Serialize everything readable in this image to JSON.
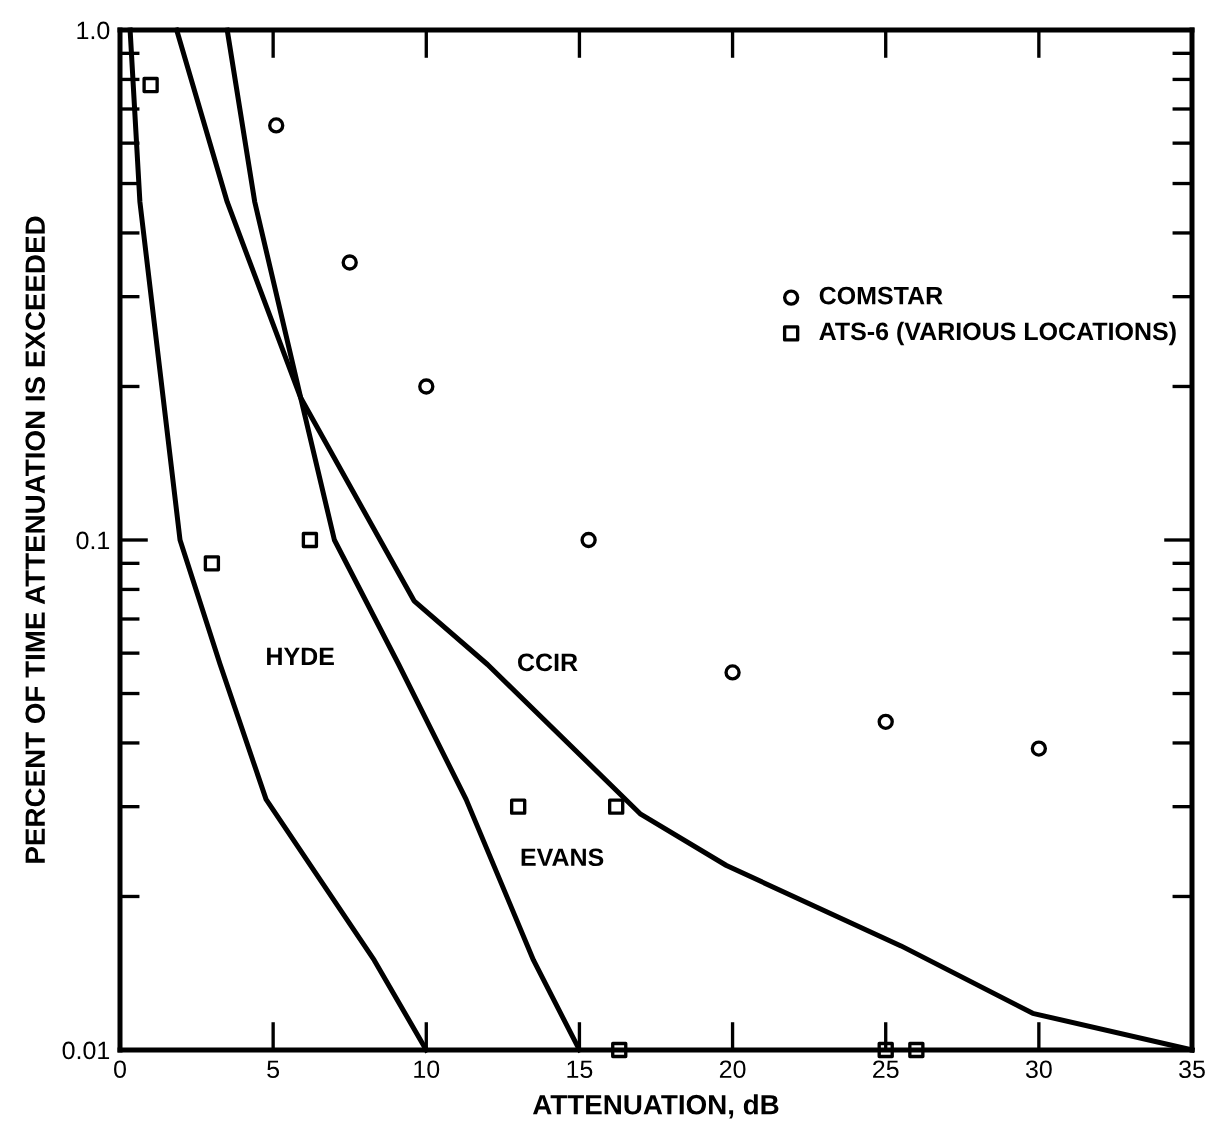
{
  "chart_data": {
    "type": "line",
    "xlabel": "ATTENUATION, dB",
    "ylabel": "PERCENT OF TIME ATTENUATION IS EXCEEDED",
    "log": "y",
    "xlim": [
      0,
      35
    ],
    "ylim": [
      0.01,
      1.0
    ],
    "xticks": [
      0,
      5,
      10,
      15,
      20,
      25,
      30,
      35
    ],
    "yticks": [
      {
        "value": 0.01,
        "label": "0.01"
      },
      {
        "value": 0.1,
        "label": "0.1"
      },
      {
        "value": 1.0,
        "label": "1.0"
      }
    ],
    "grid": false,
    "legend": "right",
    "series": [
      {
        "name": "HYDE",
        "color": "#000000",
        "marker": "none",
        "x": [
          0.33,
          0.65,
          1.96,
          3.27,
          4.77,
          8.3,
          10
        ],
        "values": [
          1.0,
          0.46,
          0.1,
          0.057,
          0.031,
          0.015,
          0.01
        ]
      },
      {
        "name": "EVANS",
        "color": "#000000",
        "marker": "none",
        "x": [
          3.5,
          4.4,
          5.9,
          7.0,
          9.1,
          11.3,
          13.5,
          15
        ],
        "values": [
          1.0,
          0.46,
          0.19,
          0.1,
          0.057,
          0.031,
          0.015,
          0.01
        ]
      },
      {
        "name": "CCIR",
        "color": "#000000",
        "marker": "none",
        "x": [
          1.85,
          3.5,
          5.9,
          9.6,
          12.0,
          17.0,
          19.8,
          25.5,
          29.8,
          35
        ],
        "values": [
          1.0,
          0.46,
          0.19,
          0.076,
          0.057,
          0.029,
          0.023,
          0.016,
          0.0118,
          0.01
        ]
      },
      {
        "type": "scatter",
        "name": "COMSTAR",
        "color": "#000000",
        "marker": "circle",
        "x": [
          5.1,
          7.5,
          10,
          15.3,
          20,
          25,
          30
        ],
        "values": [
          0.65,
          0.35,
          0.2,
          0.1,
          0.055,
          0.044,
          0.039
        ]
      },
      {
        "type": "scatter",
        "name": "ATS-6 (VARIOUS LOCATIONS)",
        "color": "#000000",
        "marker": "square",
        "x": [
          1,
          3,
          6.2,
          13,
          16.2,
          16.3,
          25,
          26
        ],
        "values": [
          0.78,
          0.09,
          0.1,
          0.03,
          0.03,
          0.01,
          0.01,
          0.01
        ]
      }
    ]
  }
}
